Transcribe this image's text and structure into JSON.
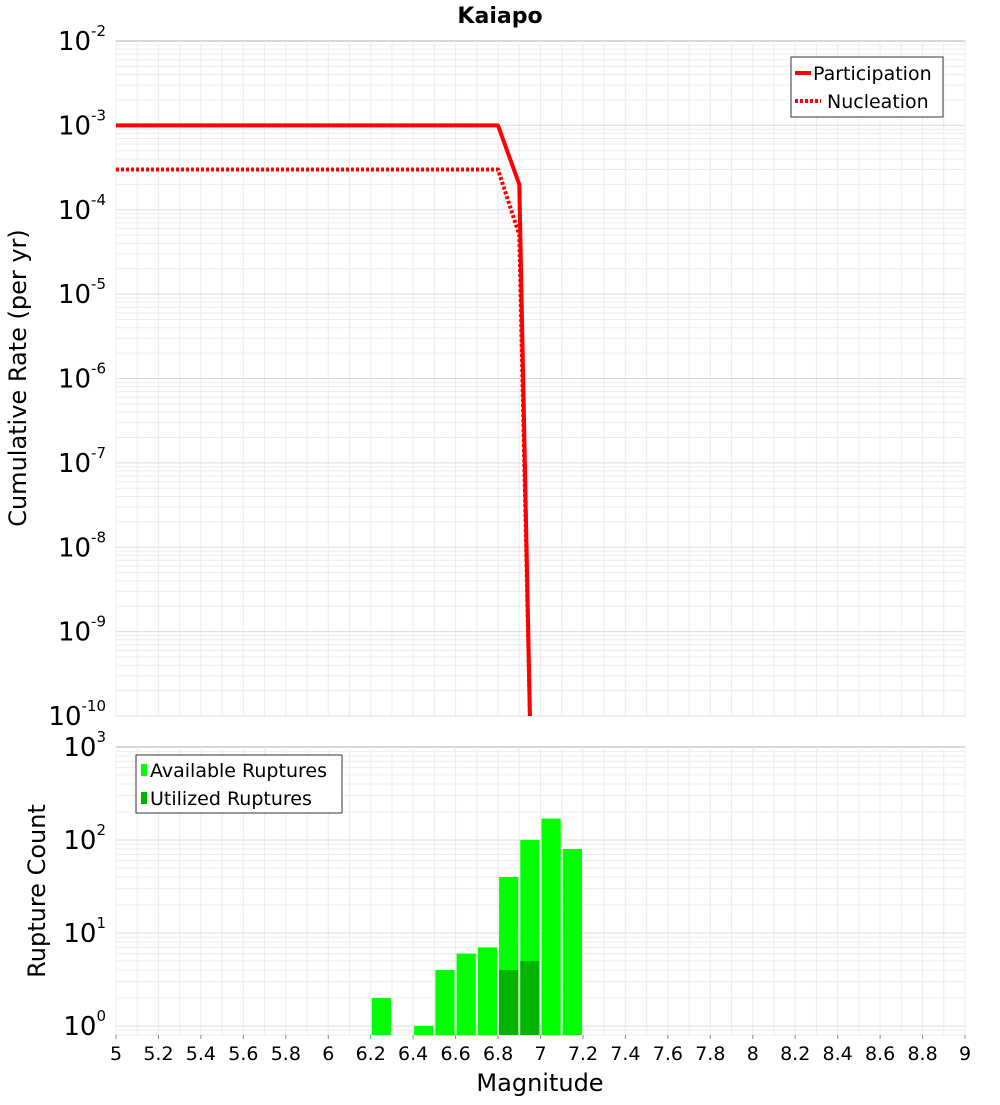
{
  "chart_data": [
    {
      "type": "line",
      "title": "Kaiapo",
      "ylabel": "Cumulative Rate (per yr)",
      "xlabel": "",
      "y_scale": "log",
      "xlim": [
        5,
        9
      ],
      "ylim": [
        1e-10,
        0.01
      ],
      "grid": true,
      "legend_position": "top-right",
      "y_ticks": [
        {
          "base": "10",
          "exp": "-2"
        },
        {
          "base": "10",
          "exp": "-3"
        },
        {
          "base": "10",
          "exp": "-4"
        },
        {
          "base": "10",
          "exp": "-5"
        },
        {
          "base": "10",
          "exp": "-6"
        },
        {
          "base": "10",
          "exp": "-7"
        },
        {
          "base": "10",
          "exp": "-8"
        },
        {
          "base": "10",
          "exp": "-9"
        },
        {
          "base": "10",
          "exp": "-10"
        }
      ],
      "series": [
        {
          "name": "Participation",
          "style": "solid",
          "color": "#ff0000",
          "x": [
            5.0,
            6.8,
            6.9,
            6.95
          ],
          "y": [
            0.001,
            0.001,
            0.0002,
            1e-10
          ]
        },
        {
          "name": "Nucleation",
          "style": "dotted",
          "color": "#ff0000",
          "x": [
            5.0,
            6.8,
            6.9,
            6.95
          ],
          "y": [
            0.0003,
            0.0003,
            5e-05,
            1e-10
          ]
        }
      ]
    },
    {
      "type": "bar",
      "title": "",
      "ylabel": "Rupture Count",
      "xlabel": "Magnitude",
      "y_scale": "log",
      "xlim": [
        5,
        9
      ],
      "ylim": [
        0.8,
        1000
      ],
      "grid": true,
      "legend_position": "top-left",
      "bin_width": 0.1,
      "y_ticks": [
        {
          "base": "10",
          "exp": "3"
        },
        {
          "base": "10",
          "exp": "2"
        },
        {
          "base": "10",
          "exp": "1"
        },
        {
          "base": "10",
          "exp": "0"
        }
      ],
      "x_ticks": [
        "5",
        "5.2",
        "5.4",
        "5.6",
        "5.8",
        "6",
        "6.2",
        "6.4",
        "6.6",
        "6.8",
        "7",
        "7.2",
        "7.4",
        "7.6",
        "7.8",
        "8",
        "8.2",
        "8.4",
        "8.6",
        "8.8",
        "9"
      ],
      "series": [
        {
          "name": "Available Ruptures",
          "color": "#00ff00",
          "x": [
            6.25,
            6.45,
            6.55,
            6.65,
            6.75,
            6.85,
            6.95,
            7.05,
            7.15
          ],
          "values": [
            2,
            1,
            4,
            6,
            7,
            40,
            100,
            170,
            80
          ]
        },
        {
          "name": "Utilized Ruptures",
          "color": "#00b400",
          "x": [
            6.85,
            6.95
          ],
          "values": [
            4,
            5
          ]
        }
      ]
    }
  ]
}
